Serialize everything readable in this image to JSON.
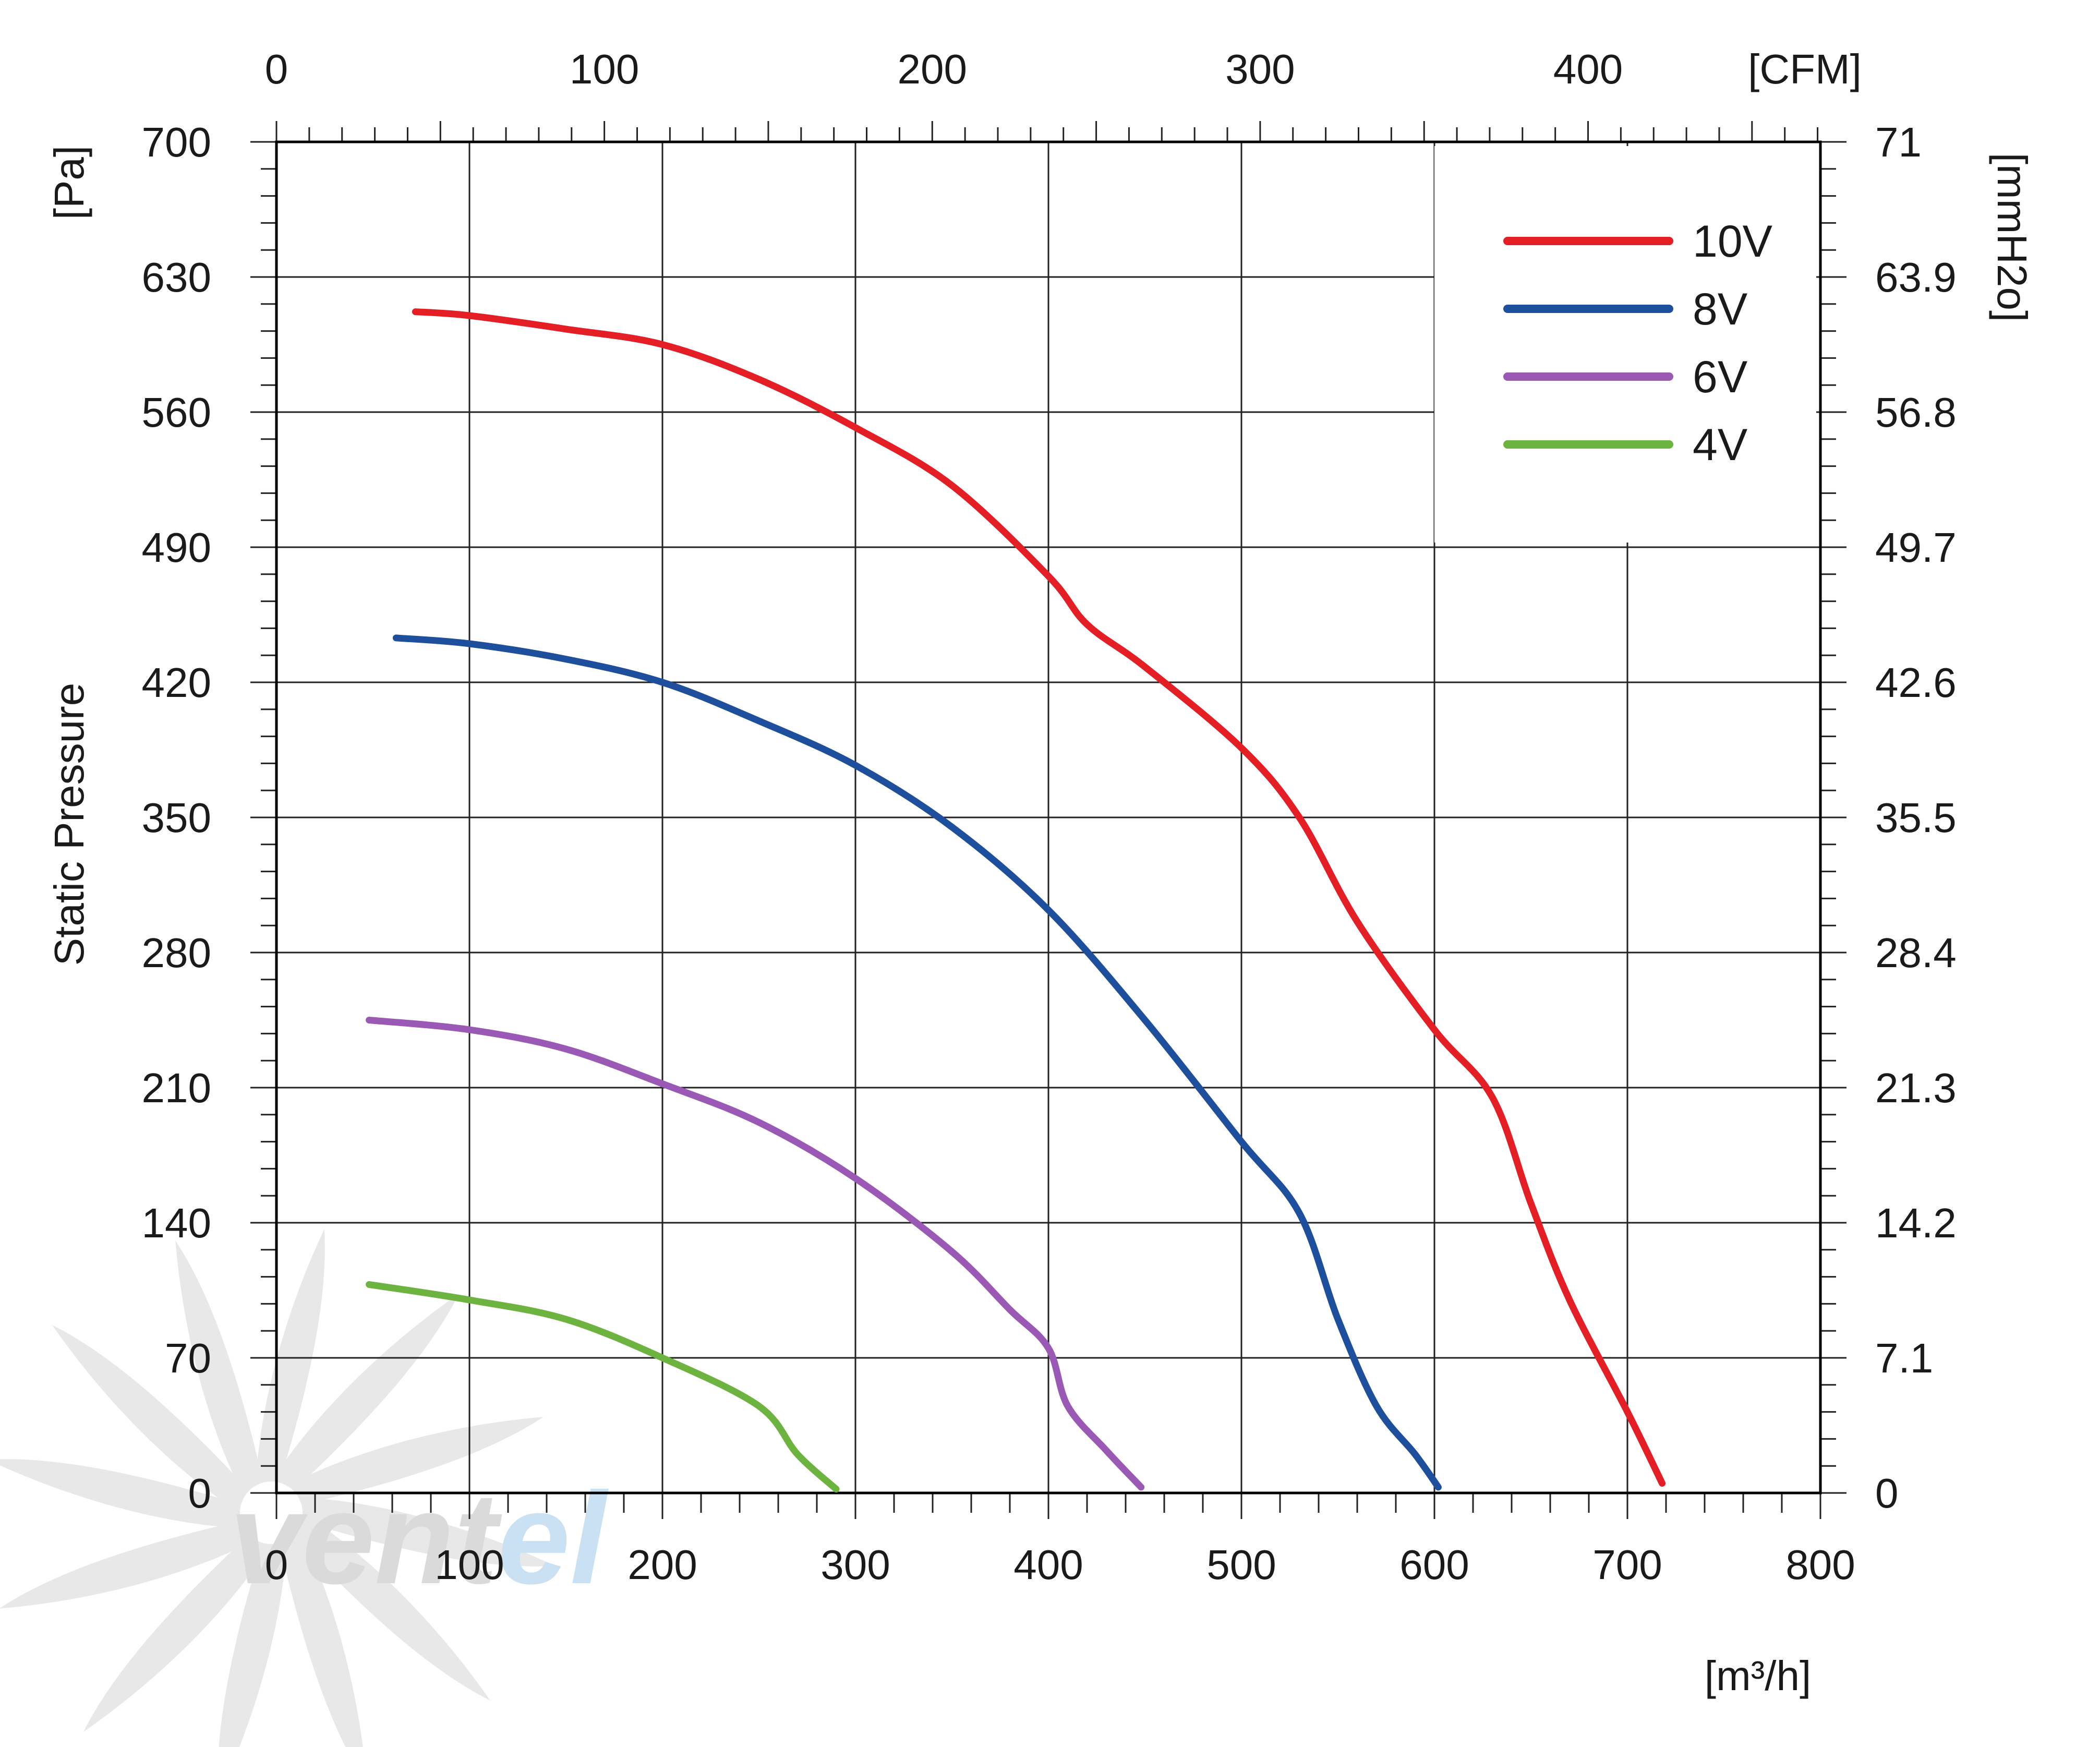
{
  "chart_data": {
    "type": "line",
    "title": "",
    "xlabel": "[m3/h]",
    "ylabel": "Static Pressure",
    "x_unit": "[m³/h]",
    "y_unit": "[Pa]",
    "x_top_unit": "[CFM]",
    "y_right_unit": "[mmH2o]",
    "xlim": [
      0,
      800
    ],
    "ylim": [
      0,
      700
    ],
    "x_ticks": [
      0,
      100,
      200,
      300,
      400,
      500,
      600,
      700,
      800
    ],
    "y_ticks": [
      0,
      70,
      140,
      210,
      280,
      350,
      420,
      490,
      560,
      630,
      700
    ],
    "x_top_tick_labels": [
      "0",
      "100",
      "200",
      "300",
      "400"
    ],
    "x_top_tick_values": [
      0,
      100,
      200,
      300,
      400
    ],
    "y_right_tick_labels": [
      "0",
      "7.1",
      "14.2",
      "21.3",
      "28.4",
      "35.5",
      "42.6",
      "49.7",
      "56.8",
      "63.9",
      "71"
    ],
    "grid": true,
    "legend_position": "top-right",
    "series": [
      {
        "name": "10V",
        "color": "#e31e24",
        "x": [
          72,
          100,
          150,
          200,
          250,
          300,
          350,
          400,
          420,
          450,
          500,
          530,
          560,
          600,
          630,
          650,
          670,
          700,
          718
        ],
        "y": [
          612,
          610,
          603,
          595,
          577,
          552,
          522,
          475,
          450,
          428,
          386,
          350,
          296,
          240,
          205,
          150,
          100,
          42,
          5
        ]
      },
      {
        "name": "8V",
        "color": "#1d4f9c",
        "x": [
          62,
          100,
          150,
          200,
          250,
          300,
          350,
          400,
          450,
          500,
          530,
          550,
          570,
          590,
          602
        ],
        "y": [
          443,
          440,
          432,
          420,
          400,
          377,
          345,
          302,
          245,
          182,
          145,
          90,
          45,
          20,
          3
        ]
      },
      {
        "name": "6V",
        "color": "#9b59b6",
        "x": [
          48,
          100,
          150,
          200,
          250,
          300,
          350,
          380,
          400,
          410,
          430,
          448
        ],
        "y": [
          245,
          240,
          230,
          212,
          192,
          163,
          125,
          95,
          75,
          45,
          22,
          3
        ]
      },
      {
        "name": "4V",
        "color": "#6db33f",
        "x": [
          48,
          100,
          150,
          200,
          250,
          270,
          290
        ],
        "y": [
          108,
          100,
          90,
          70,
          45,
          20,
          2
        ]
      }
    ]
  },
  "watermark": {
    "text_part1": "vent",
    "text_part2": "el",
    "color_part1": "#bdbdbd",
    "color_part2": "#9ec9e8"
  }
}
